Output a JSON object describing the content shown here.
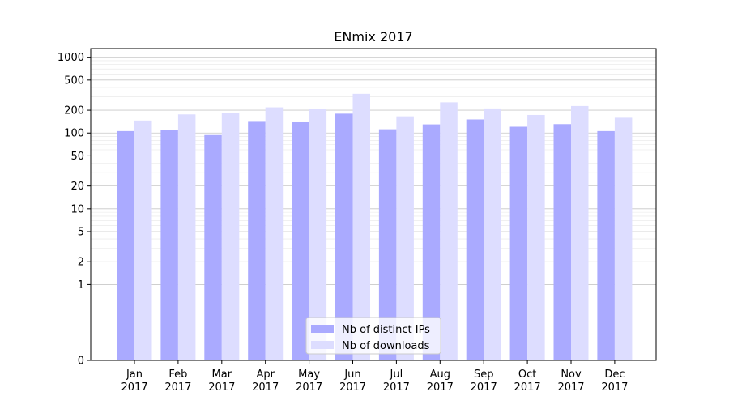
{
  "chart_data": {
    "type": "bar",
    "title": "ENmix 2017",
    "xlabel": "",
    "ylabel": "",
    "y_scale": "symlog",
    "ylim": [
      0,
      1300
    ],
    "yticks": [
      0,
      1,
      2,
      5,
      10,
      20,
      50,
      100,
      200,
      500,
      1000
    ],
    "ytick_labels": [
      "0",
      "1",
      "2",
      "5",
      "10",
      "20",
      "50",
      "100",
      "200",
      "500",
      "1000"
    ],
    "grid": true,
    "legend_position": "bottom-center",
    "categories": [
      [
        "Jan",
        "2017"
      ],
      [
        "Feb",
        "2017"
      ],
      [
        "Mar",
        "2017"
      ],
      [
        "Apr",
        "2017"
      ],
      [
        "May",
        "2017"
      ],
      [
        "Jun",
        "2017"
      ],
      [
        "Jul",
        "2017"
      ],
      [
        "Aug",
        "2017"
      ],
      [
        "Sep",
        "2017"
      ],
      [
        "Oct",
        "2017"
      ],
      [
        "Nov",
        "2017"
      ],
      [
        "Dec",
        "2017"
      ]
    ],
    "series": [
      {
        "name": "Nb of distinct IPs",
        "color": "#aaaaff",
        "values": [
          106,
          110,
          94,
          144,
          142,
          180,
          112,
          130,
          151,
          121,
          131,
          106
        ]
      },
      {
        "name": "Nb of downloads",
        "color": "#ddddff",
        "values": [
          146,
          176,
          186,
          218,
          210,
          329,
          166,
          254,
          211,
          173,
          227,
          159
        ]
      }
    ]
  }
}
